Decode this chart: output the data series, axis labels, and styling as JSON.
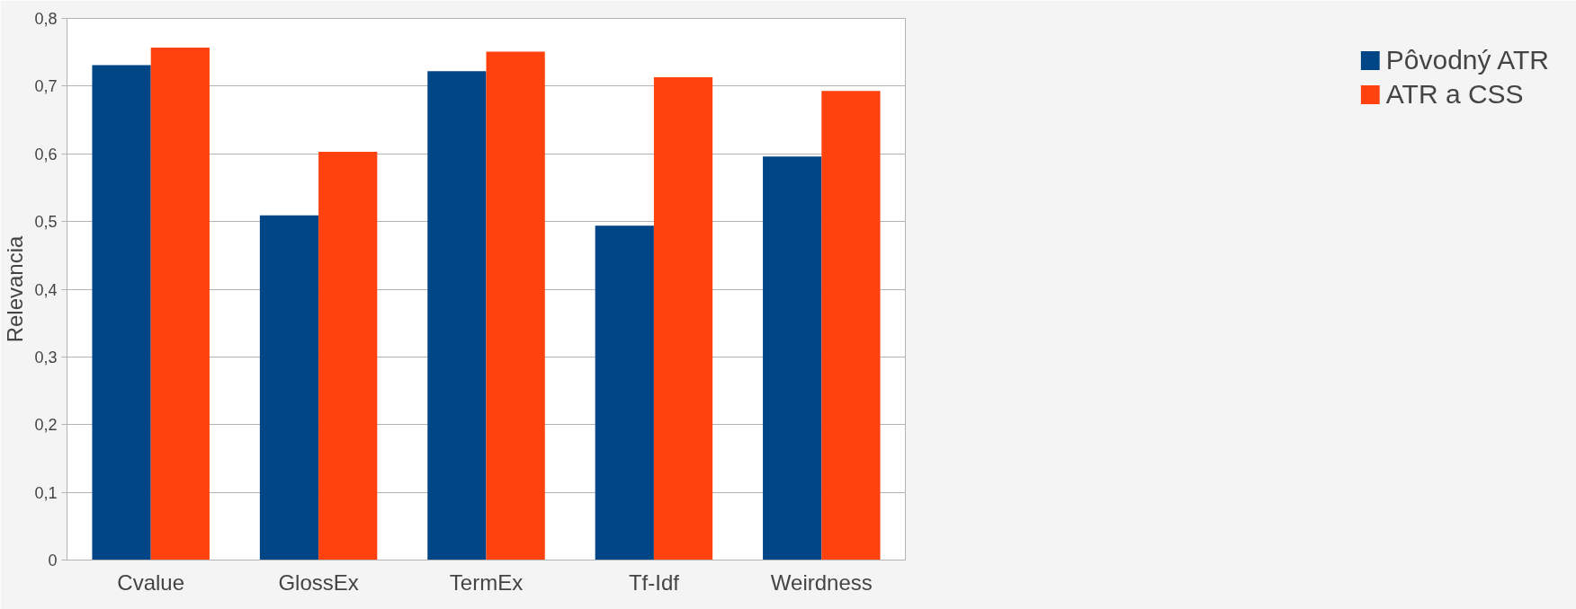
{
  "chart_data": {
    "type": "bar",
    "ylabel": "Relevancia",
    "categories": [
      "Cvalue",
      "GlossEx",
      "TermEx",
      "Tf-Idf",
      "Weirdness"
    ],
    "series": [
      {
        "name": "Pôvodný ATR",
        "color": "#004586",
        "values": [
          0.731,
          0.509,
          0.722,
          0.494,
          0.596
        ]
      },
      {
        "name": "ATR a CSS",
        "color": "#ff420e",
        "values": [
          0.757,
          0.603,
          0.751,
          0.713,
          0.693
        ]
      }
    ],
    "ylim": [
      0,
      0.8
    ],
    "yticks": [
      {
        "value": 0,
        "label": "0"
      },
      {
        "value": 0.1,
        "label": "0,1"
      },
      {
        "value": 0.2,
        "label": "0,2"
      },
      {
        "value": 0.3,
        "label": "0,3"
      },
      {
        "value": 0.4,
        "label": "0,4"
      },
      {
        "value": 0.5,
        "label": "0,5"
      },
      {
        "value": 0.6,
        "label": "0,6"
      },
      {
        "value": 0.7,
        "label": "0,7"
      },
      {
        "value": 0.8,
        "label": "0,8"
      }
    ],
    "grid": "y",
    "legend": "right"
  }
}
